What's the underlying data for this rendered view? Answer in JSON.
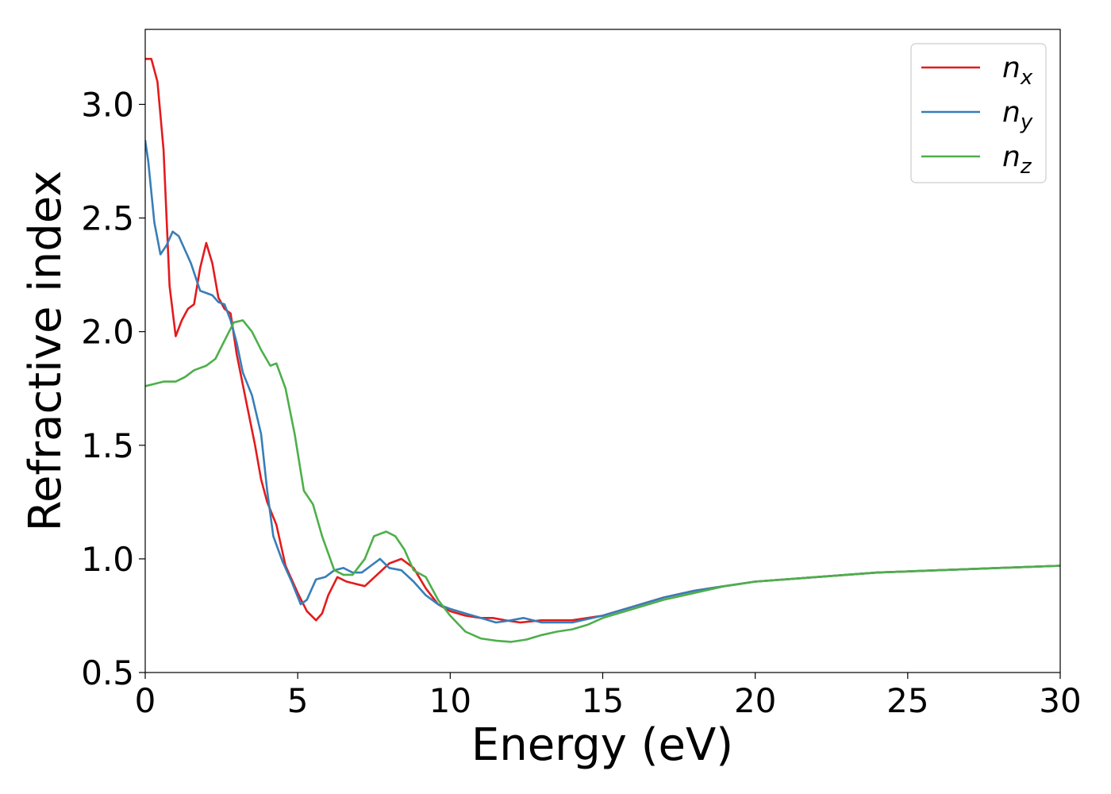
{
  "chart_data": {
    "type": "line",
    "title": "",
    "xlabel": "Energy (eV)",
    "ylabel": "Refractive index",
    "xlim": [
      0,
      30
    ],
    "ylim": [
      0.5,
      3.33
    ],
    "xticks": [
      "0",
      "5",
      "10",
      "15",
      "20",
      "25",
      "30"
    ],
    "yticks": [
      "0.5",
      "1.0",
      "1.5",
      "2.0",
      "2.5",
      "3.0"
    ],
    "grid": false,
    "legend_position": "top-right",
    "series": [
      {
        "name": "n",
        "subscript": "x",
        "color": "#e41a1c",
        "points": [
          [
            0,
            3.2
          ],
          [
            0.2,
            3.2
          ],
          [
            0.4,
            3.1
          ],
          [
            0.6,
            2.8
          ],
          [
            0.8,
            2.2
          ],
          [
            1.0,
            1.98
          ],
          [
            1.2,
            2.05
          ],
          [
            1.4,
            2.1
          ],
          [
            1.6,
            2.12
          ],
          [
            1.8,
            2.28
          ],
          [
            2.0,
            2.39
          ],
          [
            2.2,
            2.3
          ],
          [
            2.4,
            2.15
          ],
          [
            2.6,
            2.1
          ],
          [
            2.8,
            2.08
          ],
          [
            3.0,
            1.9
          ],
          [
            3.3,
            1.7
          ],
          [
            3.6,
            1.5
          ],
          [
            3.8,
            1.35
          ],
          [
            4.0,
            1.25
          ],
          [
            4.3,
            1.15
          ],
          [
            4.6,
            0.97
          ],
          [
            5.0,
            0.85
          ],
          [
            5.3,
            0.77
          ],
          [
            5.6,
            0.73
          ],
          [
            5.8,
            0.76
          ],
          [
            6.0,
            0.84
          ],
          [
            6.3,
            0.92
          ],
          [
            6.6,
            0.9
          ],
          [
            6.9,
            0.89
          ],
          [
            7.2,
            0.88
          ],
          [
            7.6,
            0.93
          ],
          [
            8.0,
            0.98
          ],
          [
            8.4,
            1.0
          ],
          [
            8.8,
            0.96
          ],
          [
            9.2,
            0.87
          ],
          [
            9.6,
            0.8
          ],
          [
            10.0,
            0.77
          ],
          [
            10.5,
            0.75
          ],
          [
            11.0,
            0.74
          ],
          [
            11.4,
            0.74
          ],
          [
            11.8,
            0.73
          ],
          [
            12.3,
            0.72
          ],
          [
            13.0,
            0.73
          ],
          [
            13.5,
            0.73
          ],
          [
            14.0,
            0.73
          ],
          [
            14.5,
            0.74
          ],
          [
            15.0,
            0.75
          ],
          [
            16.0,
            0.79
          ],
          [
            17.0,
            0.83
          ],
          [
            18.0,
            0.86
          ],
          [
            19.0,
            0.88
          ],
          [
            20.0,
            0.9
          ],
          [
            22.0,
            0.92
          ],
          [
            24.0,
            0.94
          ],
          [
            26.0,
            0.95
          ],
          [
            28.0,
            0.96
          ],
          [
            30.0,
            0.97
          ]
        ]
      },
      {
        "name": "n",
        "subscript": "y",
        "color": "#377eb8",
        "points": [
          [
            0,
            2.84
          ],
          [
            0.1,
            2.75
          ],
          [
            0.3,
            2.48
          ],
          [
            0.5,
            2.34
          ],
          [
            0.7,
            2.38
          ],
          [
            0.9,
            2.44
          ],
          [
            1.1,
            2.42
          ],
          [
            1.3,
            2.36
          ],
          [
            1.5,
            2.3
          ],
          [
            1.8,
            2.18
          ],
          [
            2.0,
            2.17
          ],
          [
            2.2,
            2.16
          ],
          [
            2.4,
            2.13
          ],
          [
            2.6,
            2.12
          ],
          [
            2.8,
            2.05
          ],
          [
            3.0,
            1.95
          ],
          [
            3.2,
            1.82
          ],
          [
            3.5,
            1.72
          ],
          [
            3.8,
            1.55
          ],
          [
            4.0,
            1.3
          ],
          [
            4.2,
            1.1
          ],
          [
            4.5,
            0.99
          ],
          [
            4.8,
            0.9
          ],
          [
            5.1,
            0.8
          ],
          [
            5.3,
            0.82
          ],
          [
            5.6,
            0.91
          ],
          [
            5.9,
            0.92
          ],
          [
            6.2,
            0.95
          ],
          [
            6.5,
            0.96
          ],
          [
            6.8,
            0.94
          ],
          [
            7.1,
            0.94
          ],
          [
            7.4,
            0.97
          ],
          [
            7.7,
            1.0
          ],
          [
            8.0,
            0.96
          ],
          [
            8.4,
            0.95
          ],
          [
            8.8,
            0.9
          ],
          [
            9.2,
            0.84
          ],
          [
            9.6,
            0.8
          ],
          [
            10.0,
            0.78
          ],
          [
            10.5,
            0.76
          ],
          [
            11.0,
            0.74
          ],
          [
            11.5,
            0.72
          ],
          [
            12.0,
            0.73
          ],
          [
            12.4,
            0.74
          ],
          [
            13.0,
            0.72
          ],
          [
            14.0,
            0.72
          ],
          [
            15.0,
            0.75
          ],
          [
            16.0,
            0.79
          ],
          [
            17.0,
            0.83
          ],
          [
            18.0,
            0.86
          ],
          [
            19.0,
            0.88
          ],
          [
            20.0,
            0.9
          ],
          [
            22.0,
            0.92
          ],
          [
            24.0,
            0.94
          ],
          [
            26.0,
            0.95
          ],
          [
            28.0,
            0.96
          ],
          [
            30.0,
            0.97
          ]
        ]
      },
      {
        "name": "n",
        "subscript": "z",
        "color": "#4daf4a",
        "points": [
          [
            0,
            1.76
          ],
          [
            0.3,
            1.77
          ],
          [
            0.6,
            1.78
          ],
          [
            1.0,
            1.78
          ],
          [
            1.3,
            1.8
          ],
          [
            1.6,
            1.83
          ],
          [
            2.0,
            1.85
          ],
          [
            2.3,
            1.88
          ],
          [
            2.6,
            1.96
          ],
          [
            2.9,
            2.04
          ],
          [
            3.2,
            2.05
          ],
          [
            3.5,
            2.0
          ],
          [
            3.8,
            1.92
          ],
          [
            4.1,
            1.85
          ],
          [
            4.3,
            1.86
          ],
          [
            4.6,
            1.75
          ],
          [
            4.9,
            1.55
          ],
          [
            5.2,
            1.3
          ],
          [
            5.5,
            1.24
          ],
          [
            5.8,
            1.1
          ],
          [
            6.2,
            0.95
          ],
          [
            6.5,
            0.93
          ],
          [
            6.8,
            0.93
          ],
          [
            7.2,
            1.0
          ],
          [
            7.5,
            1.1
          ],
          [
            7.9,
            1.12
          ],
          [
            8.2,
            1.1
          ],
          [
            8.5,
            1.04
          ],
          [
            8.8,
            0.95
          ],
          [
            9.2,
            0.92
          ],
          [
            9.6,
            0.82
          ],
          [
            10.0,
            0.75
          ],
          [
            10.5,
            0.68
          ],
          [
            11.0,
            0.65
          ],
          [
            11.5,
            0.64
          ],
          [
            12.0,
            0.635
          ],
          [
            12.5,
            0.645
          ],
          [
            13.0,
            0.665
          ],
          [
            13.5,
            0.68
          ],
          [
            14.0,
            0.69
          ],
          [
            14.5,
            0.71
          ],
          [
            15.0,
            0.74
          ],
          [
            16.0,
            0.78
          ],
          [
            17.0,
            0.82
          ],
          [
            18.0,
            0.85
          ],
          [
            19.0,
            0.88
          ],
          [
            20.0,
            0.9
          ],
          [
            22.0,
            0.92
          ],
          [
            24.0,
            0.94
          ],
          [
            26.0,
            0.95
          ],
          [
            28.0,
            0.96
          ],
          [
            30.0,
            0.97
          ]
        ]
      }
    ]
  }
}
